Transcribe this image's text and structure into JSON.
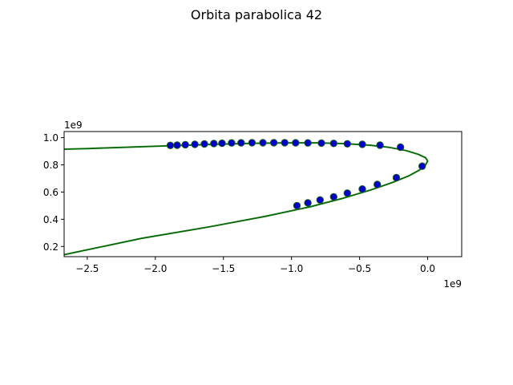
{
  "chart_data": {
    "type": "line",
    "title": "Orbita parabolica 42",
    "xlabel": "",
    "ylabel": "",
    "xlim": [
      -2670000000.0,
      250000000.0
    ],
    "ylim": [
      125000000.0,
      1045000000.0
    ],
    "x_offset_text": "1e9",
    "y_offset_text": "1e9",
    "x_ticks": [
      -2500000000.0,
      -2000000000.0,
      -1500000000.0,
      -1000000000.0,
      -500000000.0,
      0.0
    ],
    "x_tick_labels": [
      "−2.5",
      "−2.0",
      "−1.5",
      "−1.0",
      "−0.5",
      "0.0"
    ],
    "y_ticks": [
      200000000.0,
      400000000.0,
      600000000.0,
      800000000.0,
      1000000000.0
    ],
    "y_tick_labels": [
      "0.2",
      "0.4",
      "0.6",
      "0.8",
      "1.0"
    ],
    "grid": false,
    "colors": {
      "curve_outer": "#1a7a1a",
      "curve_inner": "#006400",
      "marker_fill": "#0000cc",
      "marker_edge": "#1a5e1a"
    },
    "series": [
      {
        "style": "line",
        "x": [
          -2670000000.0,
          -2500000000.0,
          -2200000000.0,
          -1900000000.0,
          -1600000000.0,
          -1300000000.0,
          -1050000000.0,
          -800000000.0,
          -600000000.0,
          -420000000.0,
          -280000000.0,
          -160000000.0,
          -70000000.0,
          -15000000.0,
          0.0,
          -15000000.0,
          -60000000.0,
          -140000000.0,
          -260000000.0,
          -420000000.0,
          -620000000.0,
          -870000000.0,
          -1200000000.0,
          -1600000000.0,
          -2100000000.0,
          -2670000000.0
        ],
        "y": [
          915000000.0,
          920000000.0,
          930000000.0,
          940000000.0,
          950000000.0,
          958000000.0,
          962000000.0,
          962000000.0,
          956000000.0,
          944000000.0,
          928000000.0,
          905000000.0,
          878000000.0,
          852000000.0,
          828000000.0,
          800000000.0,
          762000000.0,
          718000000.0,
          670000000.0,
          615000000.0,
          555000000.0,
          490000000.0,
          420000000.0,
          345000000.0,
          260000000.0,
          140000000.0
        ]
      },
      {
        "style": "scatter",
        "x": [
          -1890000000.0,
          -1840000000.0,
          -1780000000.0,
          -1710000000.0,
          -1640000000.0,
          -1570000000.0,
          -1510000000.0,
          -1440000000.0,
          -1370000000.0,
          -1290000000.0,
          -1210000000.0,
          -1130000000.0,
          -1050000000.0,
          -970000000.0,
          -880000000.0,
          -780000000.0,
          -690000000.0,
          -590000000.0,
          -480000000.0,
          -350000000.0,
          -200000000.0,
          -40000000.0,
          -230000000.0,
          -370000000.0,
          -480000000.0,
          -590000000.0,
          -690000000.0,
          -790000000.0,
          -880000000.0,
          -960000000.0
        ],
        "y": [
          943000000.0,
          945000000.0,
          948000000.0,
          951000000.0,
          954000000.0,
          957000000.0,
          959000000.0,
          961000000.0,
          962000000.0,
          963000000.0,
          963000000.0,
          963000000.0,
          963000000.0,
          962000000.0,
          961000000.0,
          960000000.0,
          958000000.0,
          955000000.0,
          951000000.0,
          945000000.0,
          930000000.0,
          790000000.0,
          706000000.0,
          656000000.0,
          622000000.0,
          592000000.0,
          565000000.0,
          542000000.0,
          521000000.0,
          500000000.0
        ]
      }
    ]
  }
}
